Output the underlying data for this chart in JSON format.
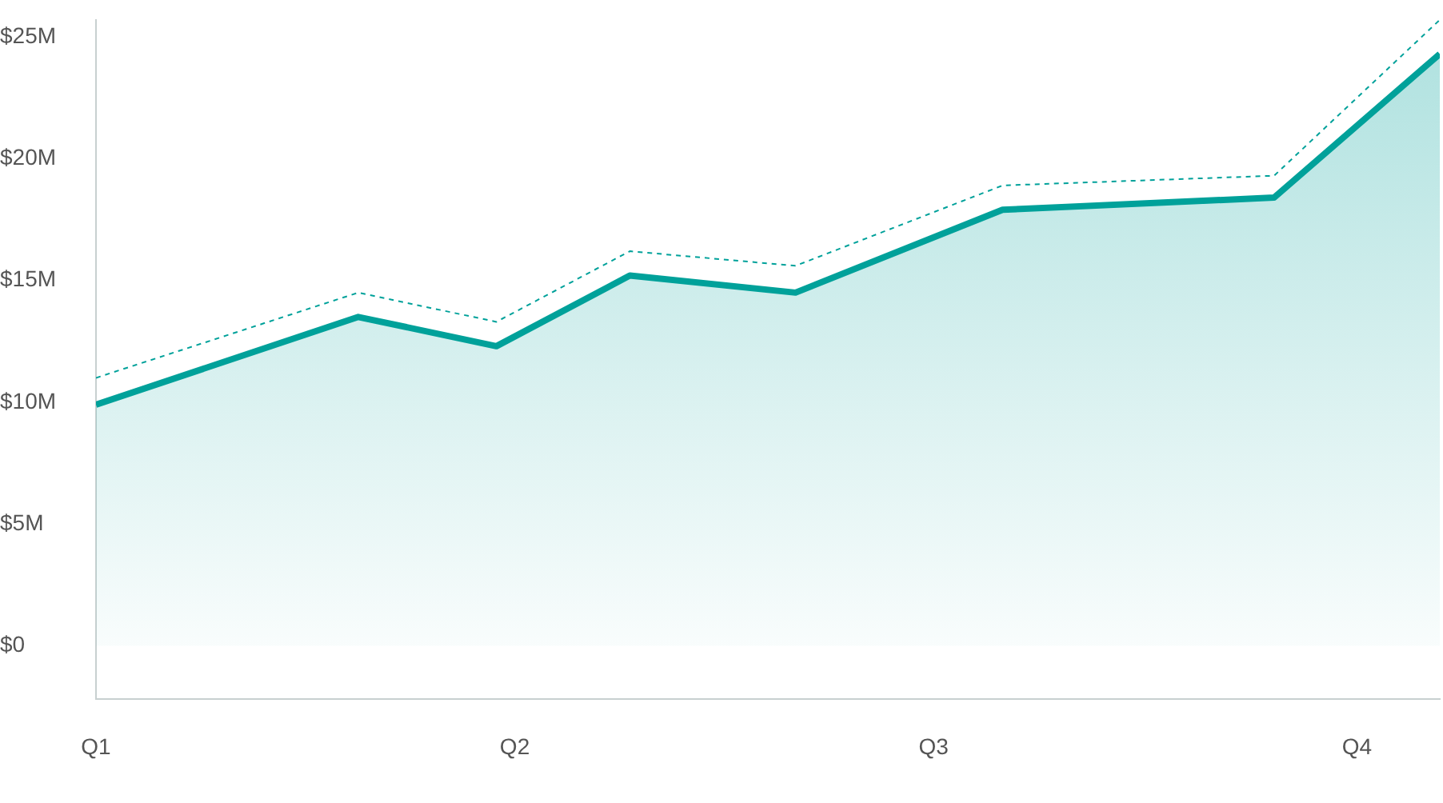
{
  "chart_data": {
    "type": "area",
    "x": [
      "--01-01",
      "--02-27",
      "--03-28",
      "--04-26",
      "--06-01",
      "--07-16",
      "--09-13",
      "--10-19"
    ],
    "xlim": [
      "--01-01",
      "--10-19"
    ],
    "xticks": [
      {
        "value": "--01-01",
        "label": "Q1"
      },
      {
        "value": "--04-01",
        "label": "Q2"
      },
      {
        "value": "--07-01",
        "label": "Q3"
      },
      {
        "value": "--10-01",
        "label": "Q4"
      }
    ],
    "ylim": [
      -2.2,
      25.7
    ],
    "yticks": [
      {
        "value": 0,
        "label": "$0"
      },
      {
        "value": 5,
        "label": "$5M"
      },
      {
        "value": 10,
        "label": "$10M"
      },
      {
        "value": 15,
        "label": "$15M"
      },
      {
        "value": 20,
        "label": "$20M"
      },
      {
        "value": 25,
        "label": "$25M"
      }
    ],
    "marker": "none",
    "series": [
      {
        "type": "area",
        "color": "#00a19a",
        "line_style": "solid",
        "values": [
          9.9,
          13.5,
          12.3,
          15.2,
          14.5,
          17.9,
          18.4,
          24.3
        ]
      },
      {
        "type": "line",
        "color": "#00a19a",
        "line_style": "dashed",
        "values": [
          11.0,
          14.5,
          13.3,
          16.2,
          15.6,
          18.9,
          19.3,
          25.7
        ]
      }
    ]
  }
}
